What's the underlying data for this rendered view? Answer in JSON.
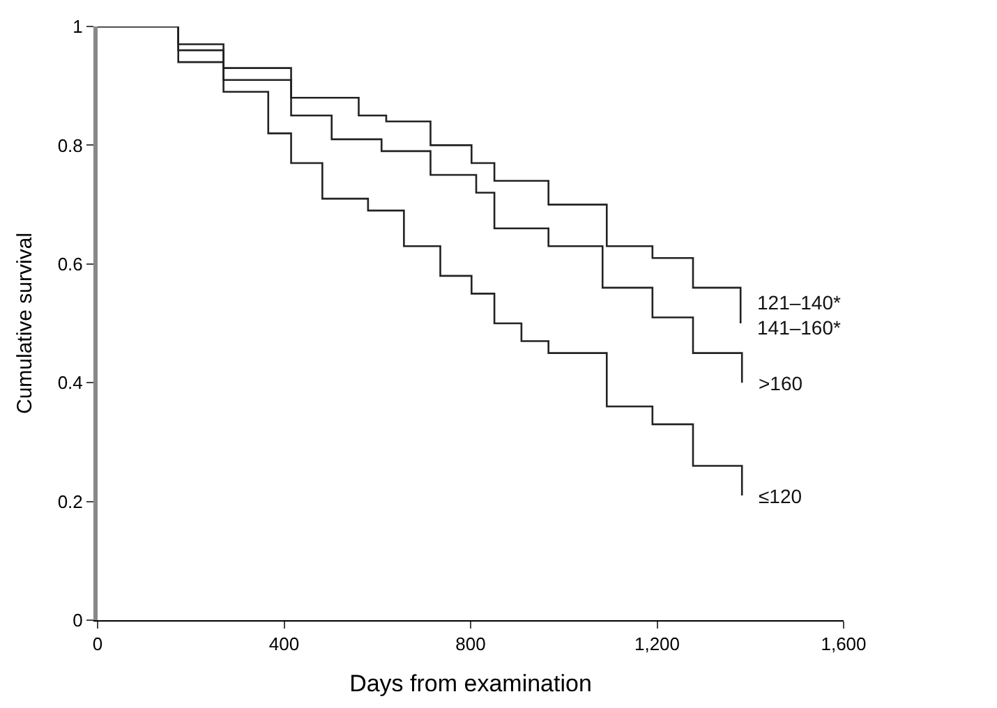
{
  "chart_data": {
    "type": "step",
    "xlabel": "Days from examination",
    "ylabel": "Cumulative survival",
    "xlim": [
      0,
      1600
    ],
    "ylim": [
      0,
      1
    ],
    "xticks": [
      0,
      400,
      800,
      {
        "value": 1200,
        "label": "1,200"
      },
      {
        "value": 1600,
        "label": "1,600"
      }
    ],
    "yticks": [
      0,
      0.2,
      0.4,
      0.6,
      0.8,
      1
    ],
    "legend": false,
    "line_style": "solid",
    "marker": "none",
    "series": [
      {
        "name": "121–140*\n141–160*",
        "color": "#222222",
        "x": [
          0,
          46,
          173,
          270,
          415,
          560,
          619,
          714,
          802,
          851,
          967,
          1092,
          1190,
          1277,
          1379
        ],
        "values": [
          1.0,
          1.0,
          0.97,
          0.93,
          0.88,
          0.85,
          0.84,
          0.8,
          0.77,
          0.74,
          0.7,
          0.63,
          0.61,
          0.56,
          0.5
        ]
      },
      {
        "name": ">160",
        "color": "#222222",
        "x": [
          0,
          46,
          173,
          270,
          415,
          502,
          609,
          714,
          812,
          851,
          967,
          1083,
          1190,
          1277,
          1382
        ],
        "values": [
          1.0,
          1.0,
          0.96,
          0.91,
          0.85,
          0.81,
          0.79,
          0.75,
          0.72,
          0.66,
          0.63,
          0.56,
          0.51,
          0.45,
          0.4
        ]
      },
      {
        "name": "≤120",
        "color": "#222222",
        "x": [
          0,
          46,
          173,
          270,
          366,
          415,
          482,
          580,
          657,
          735,
          802,
          851,
          909,
          967,
          1092,
          1190,
          1277,
          1382
        ],
        "values": [
          1.0,
          1.0,
          0.94,
          0.89,
          0.82,
          0.77,
          0.71,
          0.69,
          0.63,
          0.58,
          0.55,
          0.5,
          0.47,
          0.45,
          0.36,
          0.33,
          0.26,
          0.21
        ]
      }
    ]
  }
}
